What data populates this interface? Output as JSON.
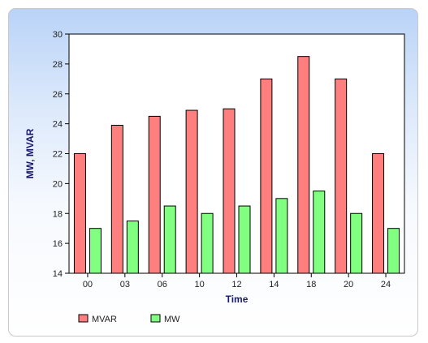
{
  "chart_data": {
    "type": "bar",
    "title": "",
    "xlabel": "Time",
    "ylabel": "MW, MVAR",
    "categories": [
      "00",
      "03",
      "06",
      "10",
      "12",
      "14",
      "18",
      "20",
      "24"
    ],
    "series": [
      {
        "name": "MVAR",
        "color": "#ff7f7f",
        "values": [
          22,
          23.9,
          24.5,
          24.9,
          25,
          27,
          28.5,
          27,
          22
        ]
      },
      {
        "name": "MW",
        "color": "#80ff80",
        "values": [
          17,
          17.5,
          18.5,
          18,
          18.5,
          19,
          19.5,
          18,
          17
        ]
      }
    ],
    "ylim": [
      14,
      30
    ],
    "yticks": [
      14,
      16,
      18,
      20,
      22,
      24,
      26,
      28,
      30
    ],
    "grid": false,
    "legend_position": "bottom-left"
  }
}
